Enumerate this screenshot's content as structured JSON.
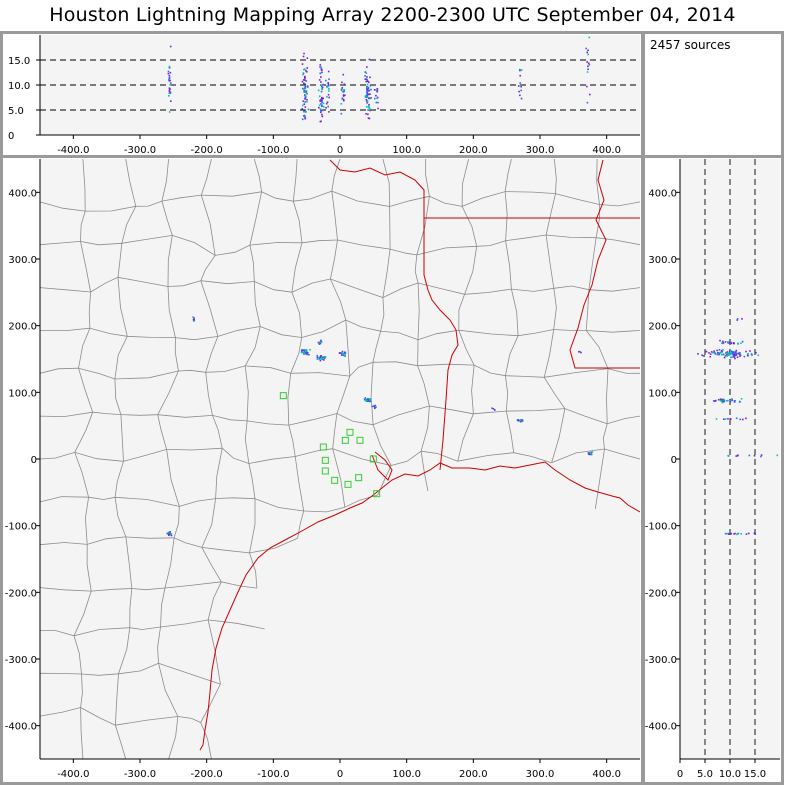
{
  "title": "Houston Lightning Mapping Array   2200-2300 UTC  September 04, 2014",
  "source_count": "2457 sources",
  "colors": {
    "frame": "#9a9a9a",
    "plot_bg": "#f4f4f4",
    "county_lines": "#8c8c8c",
    "state_coast_lines": "#cc0000",
    "stations": "#33cc33",
    "source_low": "#7a1fd6",
    "source_mid": "#1f6fff",
    "source_high": "#00c8a0"
  },
  "station_marker": "green-square",
  "map_labels": [],
  "chart_data": [
    {
      "name": "altitude-vs-east-west",
      "type": "scatter",
      "xlim": [
        -450,
        450
      ],
      "ylim": [
        0,
        20
      ],
      "x_ticks": [
        "-400.0",
        "-300.0",
        "-200.0",
        "-100.0",
        "0",
        "100.0",
        "200.0",
        "300.0",
        "400.0"
      ],
      "y_ticks": [
        "0",
        "5.0",
        "10.0",
        "15.0"
      ],
      "dashed_reference_lines": [
        5,
        10,
        15
      ],
      "clusters": [
        {
          "x": -255,
          "y": 11,
          "x_spread": 2,
          "y_spread": 4,
          "count": 25
        },
        {
          "x": -52,
          "y": 9,
          "x_spread": 3,
          "y_spread": 5,
          "count": 60
        },
        {
          "x": -28,
          "y": 8.5,
          "x_spread": 3,
          "y_spread": 4,
          "count": 45
        },
        {
          "x": -18,
          "y": 8,
          "x_spread": 2,
          "y_spread": 3,
          "count": 20
        },
        {
          "x": 5,
          "y": 8,
          "x_spread": 2,
          "y_spread": 3,
          "count": 20
        },
        {
          "x": 42,
          "y": 9,
          "x_spread": 3,
          "y_spread": 4,
          "count": 60
        },
        {
          "x": 55,
          "y": 7.5,
          "x_spread": 2,
          "y_spread": 2,
          "count": 12
        },
        {
          "x": 270,
          "y": 11,
          "x_spread": 2,
          "y_spread": 3,
          "count": 12
        },
        {
          "x": 372,
          "y": 14,
          "x_spread": 2,
          "y_spread": 6,
          "count": 15
        }
      ]
    },
    {
      "name": "plan-view-map",
      "type": "scatter",
      "xlim": [
        -450,
        450
      ],
      "ylim": [
        -450,
        450
      ],
      "x_ticks": [
        "-400.0",
        "-300.0",
        "-200.0",
        "-100.0",
        "0",
        "100.0",
        "200.0",
        "300.0",
        "400.0"
      ],
      "y_ticks": [
        "-400.0",
        "-300.0",
        "-200.0",
        "-100.0",
        "0",
        "100.0",
        "200.0",
        "300.0",
        "400.0"
      ],
      "stations": [
        [
          -85,
          95
        ],
        [
          -25,
          18
        ],
        [
          -22,
          -2
        ],
        [
          -22,
          -18
        ],
        [
          -8,
          -32
        ],
        [
          8,
          28
        ],
        [
          15,
          40
        ],
        [
          30,
          28
        ],
        [
          12,
          -38
        ],
        [
          28,
          -28
        ],
        [
          50,
          0
        ],
        [
          55,
          -52
        ]
      ],
      "clusters": [
        {
          "x": -52,
          "y": 160,
          "x_spread": 4,
          "y_spread": 3,
          "count": 35
        },
        {
          "x": -28,
          "y": 152,
          "x_spread": 4,
          "y_spread": 3,
          "count": 30
        },
        {
          "x": -30,
          "y": 175,
          "x_spread": 2,
          "y_spread": 2,
          "count": 10
        },
        {
          "x": 5,
          "y": 158,
          "x_spread": 3,
          "y_spread": 3,
          "count": 20
        },
        {
          "x": 42,
          "y": 88,
          "x_spread": 4,
          "y_spread": 2,
          "count": 30
        },
        {
          "x": 52,
          "y": 78,
          "x_spread": 2,
          "y_spread": 2,
          "count": 8
        },
        {
          "x": -255,
          "y": -112,
          "x_spread": 3,
          "y_spread": 2,
          "count": 15
        },
        {
          "x": -220,
          "y": 210,
          "x_spread": 2,
          "y_spread": 2,
          "count": 5
        },
        {
          "x": 270,
          "y": 58,
          "x_spread": 3,
          "y_spread": 2,
          "count": 12
        },
        {
          "x": 375,
          "y": 8,
          "x_spread": 4,
          "y_spread": 2,
          "count": 10
        },
        {
          "x": 360,
          "y": 160,
          "x_spread": 2,
          "y_spread": 2,
          "count": 3
        },
        {
          "x": 230,
          "y": 75,
          "x_spread": 2,
          "y_spread": 2,
          "count": 3
        }
      ]
    },
    {
      "name": "north-south-vs-altitude",
      "type": "scatter",
      "xlim": [
        0,
        20
      ],
      "ylim": [
        -450,
        450
      ],
      "x_ticks": [
        "0",
        "5.0",
        "10.0",
        "15.0"
      ],
      "y_ticks": [
        "-400.0",
        "-300.0",
        "-200.0",
        "-100.0",
        "0",
        "100.0",
        "200.0",
        "300.0",
        "400.0"
      ],
      "dashed_reference_lines": [
        5,
        10,
        15
      ],
      "clusters": [
        {
          "x": 10,
          "y": 158,
          "x_spread": 4,
          "y_spread": 4,
          "count": 90
        },
        {
          "x": 10,
          "y": 175,
          "x_spread": 2,
          "y_spread": 2,
          "count": 20
        },
        {
          "x": 9,
          "y": 88,
          "x_spread": 2,
          "y_spread": 2,
          "count": 35
        },
        {
          "x": 11,
          "y": 60,
          "x_spread": 3,
          "y_spread": 1,
          "count": 10
        },
        {
          "x": 13,
          "y": 5,
          "x_spread": 4,
          "y_spread": 1,
          "count": 10
        },
        {
          "x": 11,
          "y": -112,
          "x_spread": 3,
          "y_spread": 1,
          "count": 15
        },
        {
          "x": 12,
          "y": 210,
          "x_spread": 1,
          "y_spread": 1,
          "count": 3
        }
      ]
    }
  ]
}
